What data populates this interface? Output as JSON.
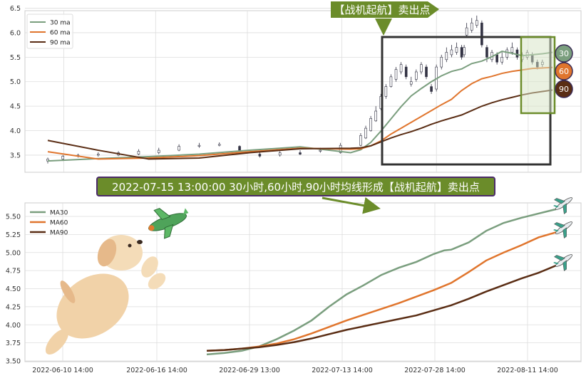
{
  "chart_data": [
    {
      "type": "candlestick",
      "title": "",
      "xlabel": "",
      "ylabel": "",
      "ylim": [
        3.15,
        6.45
      ],
      "y_ticks": [
        "3.5",
        "4.0",
        "4.5",
        "5.0",
        "5.5",
        "6.0",
        "6.5"
      ],
      "grid": true,
      "legend_position": "top-left",
      "series": [
        {
          "name": "30 ma",
          "color": "#7a9e7e",
          "x": [
            0,
            10,
            20,
            30,
            40,
            50,
            60,
            62,
            64,
            66,
            68,
            70,
            72,
            74,
            76,
            78,
            80,
            82,
            84,
            86,
            88,
            90,
            92,
            94,
            96,
            98,
            100
          ],
          "values": [
            3.38,
            3.43,
            3.47,
            3.52,
            3.6,
            3.67,
            3.55,
            3.61,
            3.76,
            3.99,
            4.24,
            4.49,
            4.71,
            4.86,
            5.0,
            5.12,
            5.21,
            5.26,
            5.37,
            5.42,
            5.51,
            5.62,
            5.58,
            5.53,
            5.55,
            5.57,
            5.6
          ]
        },
        {
          "name": "60 ma",
          "color": "#e0752d",
          "x": [
            0,
            10,
            20,
            30,
            40,
            50,
            60,
            62,
            64,
            66,
            68,
            70,
            72,
            74,
            76,
            78,
            80,
            82,
            84,
            86,
            88,
            90,
            92,
            94,
            96,
            98,
            100
          ],
          "values": [
            3.57,
            3.42,
            3.44,
            3.49,
            3.57,
            3.64,
            3.62,
            3.63,
            3.69,
            3.79,
            3.93,
            4.05,
            4.17,
            4.29,
            4.41,
            4.53,
            4.64,
            4.82,
            4.96,
            5.06,
            5.11,
            5.17,
            5.21,
            5.24,
            5.27,
            5.28,
            5.29
          ]
        },
        {
          "name": "90 ma",
          "color": "#5a2d14",
          "x": [
            0,
            10,
            20,
            30,
            40,
            50,
            60,
            62,
            64,
            66,
            68,
            70,
            72,
            74,
            76,
            78,
            80,
            82,
            84,
            86,
            88,
            90,
            92,
            94,
            96,
            98,
            100
          ],
          "values": [
            3.8,
            3.6,
            3.42,
            3.44,
            3.55,
            3.63,
            3.64,
            3.65,
            3.69,
            3.77,
            3.85,
            3.92,
            3.98,
            4.05,
            4.13,
            4.2,
            4.26,
            4.32,
            4.41,
            4.5,
            4.57,
            4.63,
            4.68,
            4.73,
            4.77,
            4.8,
            4.83
          ]
        },
        {
          "name": "price",
          "type": "candlestick",
          "x": [
            0,
            3,
            6,
            10,
            14,
            18,
            22,
            26,
            30,
            34,
            38,
            42,
            46,
            50,
            54,
            58,
            62,
            63,
            64,
            65,
            66,
            67,
            68,
            69,
            70,
            71,
            72,
            73,
            74,
            75,
            76,
            77,
            78,
            79,
            80,
            81,
            82,
            82.5,
            83,
            84,
            85,
            86,
            87,
            88,
            89,
            90,
            91,
            92,
            93,
            94,
            95,
            96,
            97,
            98
          ],
          "open": [
            3.38,
            3.42,
            3.48,
            3.5,
            3.5,
            3.52,
            3.55,
            3.6,
            3.68,
            3.7,
            3.68,
            3.52,
            3.5,
            3.55,
            3.58,
            3.55,
            3.7,
            3.85,
            4.0,
            4.2,
            4.45,
            4.7,
            4.9,
            5.05,
            5.2,
            5.3,
            4.95,
            5.05,
            5.2,
            5.3,
            4.9,
            4.85,
            5.3,
            5.45,
            5.55,
            5.6,
            5.7,
            5.55,
            5.95,
            6.05,
            6.15,
            6.2,
            5.7,
            5.45,
            5.55,
            5.4,
            5.5,
            5.6,
            5.65,
            5.45,
            5.5,
            5.55,
            5.4,
            5.35
          ],
          "close": [
            3.42,
            3.48,
            3.5,
            3.52,
            3.55,
            3.58,
            3.6,
            3.68,
            3.7,
            3.72,
            3.6,
            3.48,
            3.55,
            3.52,
            3.6,
            3.7,
            3.9,
            4.05,
            4.25,
            4.4,
            4.7,
            4.9,
            5.1,
            5.25,
            5.35,
            5.1,
            5.0,
            5.2,
            5.35,
            5.1,
            4.8,
            5.3,
            5.5,
            5.6,
            5.65,
            5.7,
            5.5,
            5.7,
            6.1,
            6.2,
            6.25,
            5.75,
            5.5,
            5.6,
            5.4,
            5.5,
            5.65,
            5.7,
            5.5,
            5.55,
            5.6,
            5.4,
            5.3,
            5.4
          ],
          "high": [
            3.45,
            3.5,
            3.53,
            3.56,
            3.58,
            3.62,
            3.65,
            3.72,
            3.75,
            3.76,
            3.7,
            3.56,
            3.58,
            3.6,
            3.65,
            3.75,
            3.95,
            4.1,
            4.3,
            4.5,
            4.75,
            4.95,
            5.15,
            5.3,
            5.4,
            5.35,
            5.1,
            5.25,
            5.4,
            5.35,
            4.95,
            5.35,
            5.55,
            5.7,
            5.75,
            5.8,
            5.75,
            5.75,
            6.2,
            6.3,
            6.35,
            6.25,
            5.75,
            5.65,
            5.6,
            5.6,
            5.7,
            5.8,
            5.7,
            5.6,
            5.65,
            5.6,
            5.45,
            5.45
          ],
          "low": [
            3.33,
            3.38,
            3.45,
            3.47,
            3.48,
            3.5,
            3.52,
            3.58,
            3.65,
            3.68,
            3.58,
            3.45,
            3.47,
            3.5,
            3.55,
            3.53,
            3.68,
            3.83,
            3.98,
            4.18,
            4.42,
            4.65,
            4.88,
            5.0,
            5.15,
            5.05,
            4.9,
            5.0,
            5.15,
            5.05,
            4.75,
            4.8,
            5.25,
            5.4,
            5.5,
            5.55,
            5.45,
            5.5,
            5.9,
            6.0,
            6.1,
            5.7,
            5.4,
            5.4,
            5.35,
            5.35,
            5.45,
            5.55,
            5.45,
            5.4,
            5.45,
            5.35,
            5.25,
            5.3
          ]
        }
      ],
      "annotations": {
        "top_banner": "【战机起航】卖出点",
        "badges": [
          "30",
          "60",
          "90"
        ]
      }
    },
    {
      "type": "line",
      "title": "2022-07-15 13:00:00 30小时,60小时,90小时均线形成【战机起航】卖出点",
      "xlabel": "",
      "ylabel": "",
      "ylim": [
        3.48,
        5.7
      ],
      "y_ticks": [
        "3.50",
        "3.75",
        "4.00",
        "4.25",
        "4.50",
        "4.75",
        "5.00",
        "5.25",
        "5.50"
      ],
      "x_ticks": [
        "2022-06-10 14:00",
        "2022-06-16 14:00",
        "2022-06-29 13:00",
        "2022-07-13 14:00",
        "2022-07-28 14:00",
        "2022-08-11 14:00"
      ],
      "grid": true,
      "legend_position": "top-left",
      "series": [
        {
          "name": "MA30",
          "color": "#7a9e7e",
          "x": [
            0,
            0.05,
            0.1,
            0.15,
            0.2,
            0.25,
            0.3,
            0.35,
            0.4,
            0.45,
            0.5,
            0.55,
            0.6,
            0.65,
            0.68,
            0.7,
            0.75,
            0.8,
            0.85,
            0.9,
            0.95,
            1.0
          ],
          "values": [
            3.59,
            3.61,
            3.64,
            3.7,
            3.8,
            3.92,
            4.06,
            4.25,
            4.42,
            4.55,
            4.69,
            4.79,
            4.87,
            4.98,
            5.03,
            5.04,
            5.14,
            5.3,
            5.41,
            5.48,
            5.54,
            5.6
          ]
        },
        {
          "name": "MA60",
          "color": "#e0752d",
          "x": [
            0,
            0.05,
            0.1,
            0.15,
            0.2,
            0.25,
            0.3,
            0.35,
            0.4,
            0.45,
            0.5,
            0.55,
            0.6,
            0.65,
            0.7,
            0.75,
            0.8,
            0.85,
            0.9,
            0.95,
            1.0
          ],
          "values": [
            3.64,
            3.65,
            3.67,
            3.7,
            3.74,
            3.8,
            3.88,
            3.97,
            4.06,
            4.14,
            4.22,
            4.3,
            4.39,
            4.48,
            4.58,
            4.73,
            4.89,
            5.0,
            5.1,
            5.21,
            5.28
          ]
        },
        {
          "name": "MA90",
          "color": "#5a2d14",
          "x": [
            0,
            0.05,
            0.1,
            0.15,
            0.2,
            0.25,
            0.3,
            0.35,
            0.4,
            0.45,
            0.5,
            0.55,
            0.6,
            0.65,
            0.7,
            0.75,
            0.8,
            0.85,
            0.9,
            0.95,
            1.0
          ],
          "values": [
            3.64,
            3.65,
            3.67,
            3.69,
            3.72,
            3.76,
            3.81,
            3.87,
            3.93,
            3.98,
            4.03,
            4.08,
            4.13,
            4.2,
            4.27,
            4.36,
            4.46,
            4.55,
            4.64,
            4.72,
            4.82
          ]
        }
      ]
    }
  ]
}
